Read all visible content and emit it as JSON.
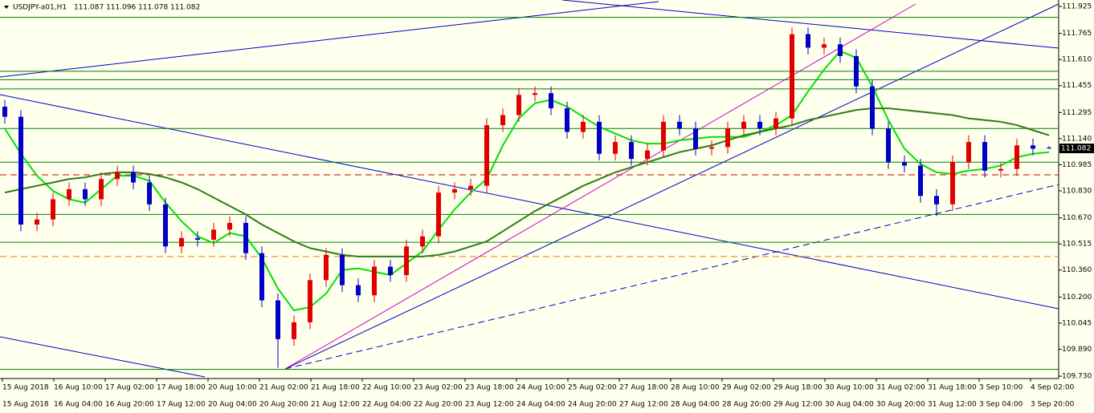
{
  "chart_data": {
    "type": "candlestick",
    "symbol": "USDJPY-a01,H1",
    "up_color": "#e00000",
    "down_color": "#0000c8",
    "open": [
      111.33,
      111.27,
      110.63,
      110.66,
      110.78,
      110.84,
      110.78,
      110.9,
      110.94,
      110.88,
      110.75,
      110.5,
      110.55,
      110.54,
      110.6,
      110.64,
      110.46,
      110.18,
      109.95,
      110.05,
      110.3,
      110.45,
      110.27,
      110.21,
      110.38,
      110.33,
      110.5,
      110.56,
      110.82,
      110.84,
      110.86,
      111.22,
      111.28,
      111.4,
      111.41,
      111.32,
      111.18,
      111.24,
      111.05,
      111.12,
      111.02,
      111.07,
      111.24,
      111.2,
      111.08,
      111.09,
      111.2,
      111.24,
      111.2,
      111.26,
      111.76,
      111.68,
      111.7,
      111.63,
      111.45,
      111.2,
      111.0,
      110.98,
      110.8,
      110.75,
      111.0,
      111.12,
      110.95,
      110.96,
      111.1,
      111.087
    ],
    "high": [
      111.37,
      111.31,
      110.7,
      110.82,
      110.88,
      110.88,
      110.94,
      110.98,
      110.98,
      110.92,
      110.79,
      110.59,
      110.59,
      110.64,
      110.68,
      110.68,
      110.5,
      110.22,
      110.09,
      110.34,
      110.49,
      110.49,
      110.31,
      110.42,
      110.42,
      110.54,
      110.6,
      110.86,
      110.88,
      110.9,
      111.26,
      111.32,
      111.44,
      111.45,
      111.45,
      111.36,
      111.28,
      111.28,
      111.16,
      111.16,
      111.11,
      111.28,
      111.28,
      111.24,
      111.13,
      111.24,
      111.28,
      111.28,
      111.3,
      111.8,
      111.8,
      111.74,
      111.74,
      111.67,
      111.49,
      111.24,
      111.04,
      111.02,
      110.84,
      111.04,
      111.16,
      111.16,
      111.0,
      111.14,
      111.14,
      111.096
    ],
    "low": [
      111.23,
      110.59,
      110.59,
      110.62,
      110.74,
      110.74,
      110.74,
      110.86,
      110.84,
      110.71,
      110.46,
      110.46,
      110.5,
      110.5,
      110.56,
      110.42,
      110.14,
      109.78,
      109.91,
      110.01,
      110.26,
      110.23,
      110.17,
      110.17,
      110.29,
      110.29,
      110.46,
      110.52,
      110.78,
      110.8,
      110.82,
      111.18,
      111.24,
      111.36,
      111.28,
      111.14,
      111.14,
      111.01,
      111.01,
      110.98,
      110.98,
      111.03,
      111.16,
      111.04,
      111.04,
      111.05,
      111.16,
      111.16,
      111.16,
      111.22,
      111.64,
      111.64,
      111.59,
      111.41,
      111.16,
      110.96,
      110.94,
      110.76,
      110.68,
      110.71,
      110.96,
      110.91,
      110.91,
      110.92,
      111.04,
      111.078
    ],
    "close": [
      111.27,
      110.63,
      110.66,
      110.78,
      110.84,
      110.78,
      110.9,
      110.94,
      110.88,
      110.75,
      110.5,
      110.55,
      110.54,
      110.6,
      110.64,
      110.46,
      110.18,
      109.95,
      110.05,
      110.3,
      110.45,
      110.27,
      110.21,
      110.38,
      110.33,
      110.5,
      110.56,
      110.82,
      110.84,
      110.86,
      111.22,
      111.28,
      111.4,
      111.41,
      111.32,
      111.18,
      111.24,
      111.05,
      111.12,
      111.02,
      111.07,
      111.24,
      111.2,
      111.08,
      111.09,
      111.2,
      111.24,
      111.2,
      111.26,
      111.76,
      111.68,
      111.7,
      111.63,
      111.45,
      111.2,
      111.0,
      110.98,
      110.8,
      110.75,
      111.0,
      111.12,
      110.95,
      110.96,
      111.1,
      111.08,
      111.082
    ],
    "series": [
      {
        "color": "#00e000",
        "values": [
          111.2,
          111.05,
          110.92,
          110.83,
          110.78,
          110.76,
          110.84,
          110.92,
          110.92,
          110.89,
          110.76,
          110.65,
          110.56,
          110.52,
          110.58,
          110.56,
          110.43,
          110.25,
          110.12,
          110.14,
          110.22,
          110.36,
          110.37,
          110.35,
          110.33,
          110.4,
          110.47,
          110.6,
          110.72,
          110.82,
          110.9,
          111.1,
          111.26,
          111.35,
          111.37,
          111.33,
          111.27,
          111.21,
          111.17,
          111.13,
          111.11,
          111.11,
          111.13,
          111.14,
          111.15,
          111.15,
          111.15,
          111.18,
          111.22,
          111.28,
          111.42,
          111.55,
          111.66,
          111.62,
          111.45,
          111.25,
          111.08,
          110.99,
          110.94,
          110.93,
          110.95,
          110.96,
          110.98,
          111.03,
          111.05,
          111.06
        ]
      },
      {
        "color": "#2e7d12",
        "values": [
          110.82,
          110.84,
          110.86,
          110.88,
          110.9,
          110.91,
          110.93,
          110.94,
          110.94,
          110.93,
          110.91,
          110.88,
          110.84,
          110.79,
          110.74,
          110.69,
          110.63,
          110.58,
          110.53,
          110.49,
          110.47,
          110.45,
          110.44,
          110.44,
          110.44,
          110.44,
          110.44,
          110.45,
          110.47,
          110.5,
          110.53,
          110.59,
          110.65,
          110.71,
          110.76,
          110.81,
          110.86,
          110.9,
          110.94,
          110.97,
          111.0,
          111.03,
          111.06,
          111.08,
          111.1,
          111.13,
          111.16,
          111.18,
          111.2,
          111.22,
          111.25,
          111.27,
          111.29,
          111.31,
          111.32,
          111.32,
          111.31,
          111.3,
          111.29,
          111.28,
          111.26,
          111.25,
          111.24,
          111.22,
          111.19,
          111.16
        ]
      }
    ],
    "levels": [
      {
        "value": 111.86,
        "color": "#008000",
        "dashed": false
      },
      {
        "value": 111.54,
        "color": "#008000",
        "dashed": false
      },
      {
        "value": 111.49,
        "color": "#008000",
        "dashed": false
      },
      {
        "value": 111.435,
        "color": "#008000",
        "dashed": false
      },
      {
        "value": 111.2,
        "color": "#008000",
        "dashed": false
      },
      {
        "value": 111.0,
        "color": "#008000",
        "dashed": false
      },
      {
        "value": 110.69,
        "color": "#008000",
        "dashed": false
      },
      {
        "value": 110.525,
        "color": "#008000",
        "dashed": false
      },
      {
        "value": 109.77,
        "color": "#008000",
        "dashed": false
      },
      {
        "value": 110.925,
        "color": "#c00000",
        "dashed": true
      },
      {
        "value": 110.44,
        "color": "#e08000",
        "dashed": true
      }
    ],
    "ylim": [
      109.716,
      111.963
    ],
    "yticks": [
      111.925,
      111.765,
      {
        "value": 111.61,
        "label": "111.610"
      },
      111.455,
      111.295,
      {
        "value": 111.14,
        "label": "111.140"
      },
      110.985,
      {
        "value": 110.83,
        "label": "110.830"
      },
      {
        "value": 110.67,
        "label": "110.670"
      },
      110.515,
      {
        "value": 110.36,
        "label": "110.360"
      },
      {
        "value": 110.2,
        "label": "110.200"
      },
      110.045,
      {
        "value": 109.89,
        "label": "109.890"
      },
      {
        "value": 109.73,
        "label": "109.730"
      }
    ],
    "xlabels_top": [
      "15 Aug 2018",
      "16 Aug 10:00",
      "17 Aug 02:00",
      "17 Aug 18:00",
      "20 Aug 10:00",
      "21 Aug 02:00",
      "21 Aug 18:00",
      "22 Aug 10:00",
      "23 Aug 02:00",
      "23 Aug 18:00",
      "24 Aug 10:00",
      "25 Aug 02:00",
      "27 Aug 18:00",
      "28 Aug 10:00",
      "29 Aug 02:00",
      "29 Aug 18:00",
      "30 Aug 10:00",
      "31 Aug 02:00",
      "31 Aug 18:00",
      "3 Sep 10:00",
      "4 Sep 02:00"
    ],
    "xlabels_bottom": [
      "15 Aug 2018",
      "16 Aug 04:00",
      "16 Aug 20:00",
      "17 Aug 12:00",
      "20 Aug 04:00",
      "20 Aug 20:00",
      "21 Aug 12:00",
      "22 Aug 04:00",
      "22 Aug 20:00",
      "23 Aug 12:00",
      "24 Aug 04:00",
      "24 Aug 20:00",
      "27 Aug 12:00",
      "28 Aug 04:00",
      "28 Aug 20:00",
      "29 Aug 12:00",
      "30 Aug 04:00",
      "30 Aug 20:00",
      "31 Aug 12:00",
      "3 Sep 04:00",
      "3 Sep 20:00"
    ]
  }
}
